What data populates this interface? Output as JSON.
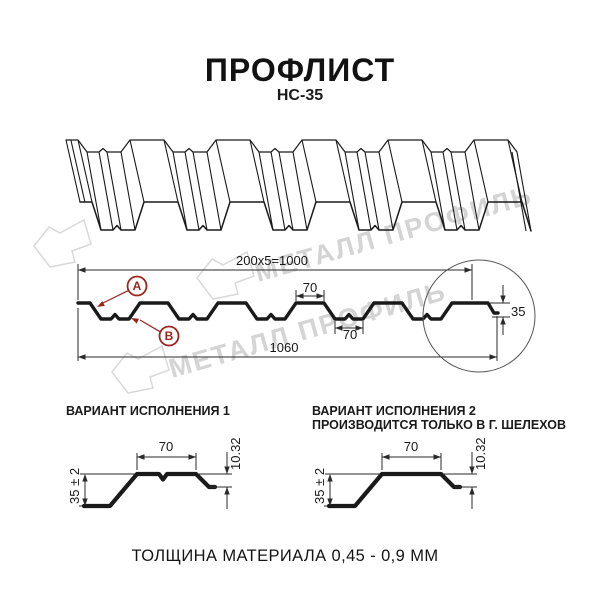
{
  "header": {
    "title": "ПРОФЛИСТ",
    "subtitle": "НС-35"
  },
  "watermark": {
    "text": "МЕТАЛЛ ПРОФИЛЬ"
  },
  "section": {
    "dim_top": "200x5=1000",
    "dim_total": "1060",
    "dim_crest": "70",
    "dim_valley": "70",
    "dim_height": "35",
    "label_a": "А",
    "label_b": "В"
  },
  "variants": {
    "v1_title": "ВАРИАНТ ИСПОЛНЕНИЯ 1",
    "v2_title": "ВАРИАНТ ИСПОЛНЕНИЯ 2",
    "v2_subtitle": "ПРОИЗВОДИТСЯ ТОЛЬКО В Г. ШЕЛЕХОВ",
    "dim_70": "70",
    "dim_step": "10.32",
    "dim_height": "35 ± 2"
  },
  "footer": {
    "thickness": "ТОЛЩИНА МАТЕРИАЛА 0,45 - 0,9 ММ"
  },
  "colors": {
    "accent": "#9b241c",
    "line": "#1a1a1a",
    "dim_line": "#2a2a2a",
    "watermark": "#d4d4d4",
    "logo_outline": "#d9d9d9",
    "detail_circle": "#555555"
  }
}
